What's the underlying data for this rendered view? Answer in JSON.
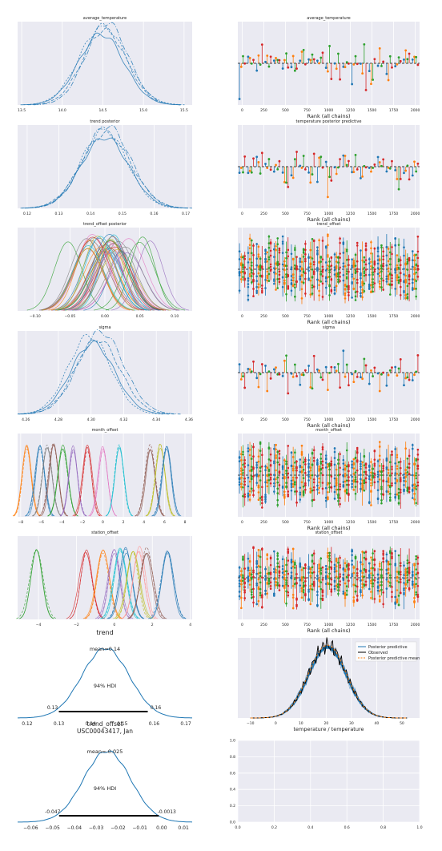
{
  "colors": {
    "panel_bg": "#eaeaf2",
    "grid": "#ffffff",
    "tick_text": "#222222",
    "c_blue": "#1f77b4",
    "c_orange": "#ff7f0e",
    "c_green": "#2ca02c",
    "c_red": "#d62728",
    "c_black": "#000000"
  },
  "chart_data": [
    {
      "type": "line",
      "kind": "trace-density",
      "title": "average_temperature",
      "xlim": [
        13.45,
        15.6
      ],
      "ylim": [
        0,
        1.08
      ],
      "xticks": [
        13.5,
        14.0,
        14.5,
        15.0,
        15.5
      ],
      "xtick_labels": [
        "13.5",
        "14.0",
        "14.5",
        "15.0",
        "15.5"
      ],
      "series": [
        {
          "mu": 14.48,
          "sigma": 0.28
        },
        {
          "mu": 14.52,
          "sigma": 0.27
        },
        {
          "mu": 14.5,
          "sigma": 0.29
        },
        {
          "mu": 14.55,
          "sigma": 0.26
        }
      ]
    },
    {
      "type": "scatter",
      "kind": "rank-plot",
      "title": "average_temperature",
      "xlabel": "Rank (all chains)",
      "xlim": [
        -50,
        2050
      ],
      "xticks": [
        0,
        250,
        500,
        750,
        1000,
        1250,
        1500,
        1750,
        2000
      ],
      "xtick_labels": [
        "0",
        "250",
        "500",
        "750",
        "1000",
        "1250",
        "1500",
        "1750",
        "2000"
      ],
      "bins": 21,
      "n_chains": 4,
      "spread": 0.55
    },
    {
      "type": "line",
      "kind": "trace-density",
      "title": "trend posterior",
      "xlim": [
        0.117,
        0.172
      ],
      "ylim": [
        0,
        1.08
      ],
      "xticks": [
        0.12,
        0.13,
        0.14,
        0.15,
        0.16,
        0.17
      ],
      "xtick_labels": [
        "0.12",
        "0.13",
        "0.14",
        "0.15",
        "0.16",
        "0.17"
      ],
      "series": [
        {
          "mu": 0.1445,
          "sigma": 0.0075
        },
        {
          "mu": 0.1448,
          "sigma": 0.0078
        },
        {
          "mu": 0.1442,
          "sigma": 0.0072
        },
        {
          "mu": 0.1452,
          "sigma": 0.0074
        }
      ]
    },
    {
      "type": "scatter",
      "kind": "rank-plot",
      "title": "temperature posterior predictive",
      "xlabel": "Rank (all chains)",
      "xlim": [
        -50,
        2050
      ],
      "xticks": [
        0,
        250,
        500,
        750,
        1000,
        1250,
        1500,
        1750,
        2000
      ],
      "xtick_labels": [
        "0",
        "250",
        "500",
        "750",
        "1000",
        "1250",
        "1500",
        "1750",
        "2000"
      ],
      "bins": 21,
      "n_chains": 4,
      "spread": 0.55
    },
    {
      "type": "line",
      "kind": "trace-density-many",
      "title": "trend_offset posterior",
      "xlim": [
        -0.125,
        0.125
      ],
      "ylim": [
        0,
        1.08
      ],
      "xticks": [
        -0.1,
        -0.05,
        0.0,
        0.05,
        0.1
      ],
      "xtick_labels": [
        "−0.10",
        "−0.05",
        "0.00",
        "0.05",
        "0.10"
      ],
      "groups": 40,
      "group_sigma": 0.022,
      "center_sigma": 0.028
    },
    {
      "type": "scatter",
      "kind": "rank-plot-many",
      "title": "trend_offset",
      "xlabel": "Rank (all chains)",
      "xlim": [
        -50,
        2050
      ],
      "xticks": [
        0,
        250,
        500,
        750,
        1000,
        1250,
        1500,
        1750,
        2000
      ],
      "xtick_labels": [
        "0",
        "250",
        "500",
        "750",
        "1000",
        "1250",
        "1500",
        "1750",
        "2000"
      ],
      "bins": 21,
      "n_chains": 4,
      "spread": 0.95
    },
    {
      "type": "line",
      "kind": "trace-density",
      "title": "sigma",
      "xlim": [
        4.255,
        4.362
      ],
      "ylim": [
        0,
        1.08
      ],
      "xticks": [
        4.26,
        4.28,
        4.3,
        4.32,
        4.34,
        4.36
      ],
      "xtick_labels": [
        "4.26",
        "4.28",
        "4.30",
        "4.32",
        "4.34",
        "4.36"
      ],
      "series": [
        {
          "mu": 4.301,
          "sigma": 0.0135
        },
        {
          "mu": 4.304,
          "sigma": 0.0138
        },
        {
          "mu": 4.299,
          "sigma": 0.013
        },
        {
          "mu": 4.306,
          "sigma": 0.014
        }
      ]
    },
    {
      "type": "scatter",
      "kind": "rank-plot",
      "title": "sigma",
      "xlabel": "Rank (all chains)",
      "xlim": [
        -50,
        2050
      ],
      "xticks": [
        0,
        250,
        500,
        750,
        1000,
        1250,
        1500,
        1750,
        2000
      ],
      "xtick_labels": [
        "0",
        "250",
        "500",
        "750",
        "1000",
        "1250",
        "1500",
        "1750",
        "2000"
      ],
      "bins": 21,
      "n_chains": 4,
      "spread": 0.55
    },
    {
      "type": "line",
      "kind": "trace-density-groups",
      "title": "month_offset",
      "xlim": [
        -8.3,
        8.7
      ],
      "ylim": [
        0,
        1.08
      ],
      "xticks": [
        -8,
        -6,
        -4,
        -2,
        0,
        2,
        4,
        6,
        8
      ],
      "xtick_labels": [
        "−8",
        "−6",
        "−4",
        "−2",
        "0",
        "2",
        "4",
        "6",
        "8"
      ],
      "sigma": 0.45,
      "groups": [
        {
          "mu": -7.4,
          "color": "#ff7f0e"
        },
        {
          "mu": -6.1,
          "color": "#1f77b4"
        },
        {
          "mu": -5.4,
          "color": "#7f7f7f"
        },
        {
          "mu": -4.8,
          "color": "#8c564b"
        },
        {
          "mu": -3.9,
          "color": "#2ca02c"
        },
        {
          "mu": -2.9,
          "color": "#9467bd"
        },
        {
          "mu": -1.5,
          "color": "#d62728"
        },
        {
          "mu": 0.0,
          "color": "#e377c2"
        },
        {
          "mu": 1.6,
          "color": "#17becf"
        },
        {
          "mu": 4.6,
          "color": "#8c564b"
        },
        {
          "mu": 5.6,
          "color": "#bcbd22"
        },
        {
          "mu": 6.2,
          "color": "#1f77b4"
        }
      ]
    },
    {
      "type": "scatter",
      "kind": "rank-plot-many",
      "title": "month_offset",
      "xlabel": "Rank (all chains)",
      "xlim": [
        -50,
        2050
      ],
      "xticks": [
        0,
        250,
        500,
        750,
        1000,
        1250,
        1500,
        1750,
        2000
      ],
      "xtick_labels": [
        "0",
        "250",
        "500",
        "750",
        "1000",
        "1250",
        "1500",
        "1750",
        "2000"
      ],
      "bins": 21,
      "n_chains": 4,
      "spread": 0.9
    },
    {
      "type": "line",
      "kind": "trace-density-groups",
      "title": "station_offset",
      "xlim": [
        -5.1,
        4.1
      ],
      "ylim": [
        0,
        1.08
      ],
      "xticks": [
        -4,
        -2,
        0,
        2,
        4
      ],
      "xtick_labels": [
        "−4",
        "−2",
        "0",
        "2",
        "4"
      ],
      "sigma": 0.32,
      "groups": [
        {
          "mu": -4.1,
          "color": "#2ca02c"
        },
        {
          "mu": -1.5,
          "color": "#d62728"
        },
        {
          "mu": -0.6,
          "color": "#ff7f0e"
        },
        {
          "mu": 0.0,
          "color": "#9467bd"
        },
        {
          "mu": 0.3,
          "color": "#17becf"
        },
        {
          "mu": 0.6,
          "color": "#1f77b4"
        },
        {
          "mu": 1.0,
          "color": "#bcbd22"
        },
        {
          "mu": 1.3,
          "color": "#ff9896"
        },
        {
          "mu": 1.7,
          "color": "#8c564b"
        },
        {
          "mu": 2.8,
          "color": "#1f77b4"
        }
      ]
    },
    {
      "type": "scatter",
      "kind": "rank-plot-many",
      "title": "station_offset",
      "xlabel": "Rank (all chains)",
      "xlim": [
        -50,
        2050
      ],
      "xticks": [
        0,
        250,
        500,
        750,
        1000,
        1250,
        1500,
        1750,
        2000
      ],
      "xtick_labels": [
        "0",
        "250",
        "500",
        "750",
        "1000",
        "1250",
        "1500",
        "1750",
        "2000"
      ],
      "bins": 21,
      "n_chains": 4,
      "spread": 0.85
    },
    {
      "type": "line",
      "kind": "posterior-hdi",
      "title": "trend",
      "xlim": [
        0.117,
        0.172
      ],
      "ylim": [
        0,
        1.15
      ],
      "mu": 0.1447,
      "sigma": 0.0075,
      "xticks": [
        0.12,
        0.13,
        0.14,
        0.15,
        0.16,
        0.17
      ],
      "xtick_labels": [
        "0.12",
        "0.13",
        "0.14",
        "0.15",
        "0.16",
        "0.17"
      ],
      "mean_label": "mean=0.14",
      "hdi_label": "94% HDI",
      "hdi": [
        0.13,
        0.158
      ],
      "hdi_low_label": "0.13",
      "hdi_high_label": "0.16"
    },
    {
      "type": "line",
      "kind": "ppc",
      "xlabel": "temperature / temperature",
      "xlim": [
        -15,
        57
      ],
      "ylim": [
        0,
        1.1
      ],
      "xticks": [
        -10,
        0,
        10,
        20,
        30,
        40,
        50
      ],
      "xtick_labels": [
        "−10",
        "0",
        "10",
        "20",
        "30",
        "40",
        "50"
      ],
      "mu": 20.5,
      "sigma": 7.5,
      "legend_position": "upper-right",
      "legend": [
        "Posterior predictive",
        "Observed",
        "Posterior predictive mean"
      ]
    },
    {
      "type": "line",
      "kind": "posterior-hdi",
      "title": "trend_offset\nUSC00043417, Jan",
      "title_lines": [
        "trend_offset",
        "USC00043417, Jan"
      ],
      "xlim": [
        -0.066,
        0.014
      ],
      "ylim": [
        0,
        1.15
      ],
      "mu": -0.025,
      "sigma": 0.0108,
      "xticks": [
        -0.06,
        -0.05,
        -0.04,
        -0.03,
        -0.02,
        -0.01,
        0.0,
        0.01
      ],
      "xtick_labels": [
        "−0.06",
        "−0.05",
        "−0.04",
        "−0.03",
        "−0.02",
        "−0.01",
        "0.00",
        "0.01"
      ],
      "mean_label": "mean=-0.025",
      "hdi_label": "94% HDI",
      "hdi": [
        -0.047,
        -0.0013
      ],
      "hdi_low_label": "-0.047",
      "hdi_high_label": "-0.0013"
    },
    {
      "type": "line",
      "kind": "empty",
      "xlim": [
        0,
        1
      ],
      "ylim": [
        0,
        1
      ],
      "xticks": [
        0.0,
        0.2,
        0.4,
        0.6,
        0.8,
        1.0
      ],
      "xtick_labels": [
        "0.0",
        "0.2",
        "0.4",
        "0.6",
        "0.8",
        "1.0"
      ],
      "yticks": [
        0.0,
        0.2,
        0.4,
        0.6,
        0.8,
        1.0
      ],
      "ytick_labels": [
        "0.0",
        "0.2",
        "0.4",
        "0.6",
        "0.8",
        "1.0"
      ]
    }
  ]
}
